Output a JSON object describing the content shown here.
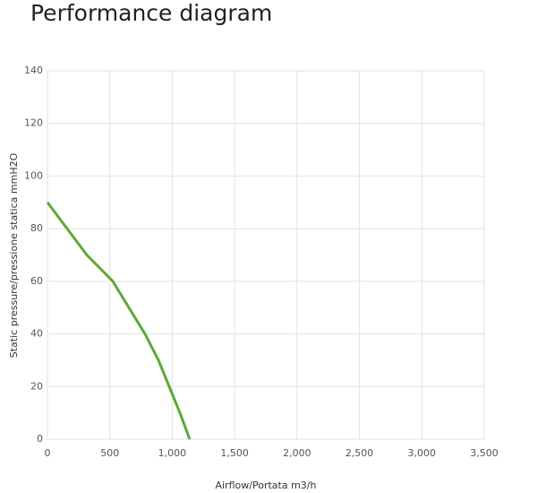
{
  "chart_data": {
    "type": "line",
    "title": "Performance diagram",
    "x_label": "Airflow/Portata m3/h",
    "y_label": "Static pressure/pressione statica mmH2O",
    "x": [
      0,
      158,
      316,
      524,
      782,
      890,
      1062,
      1140
    ],
    "series": [
      {
        "color": "#5aaa32",
        "values": [
          90,
          80,
          70,
          60,
          40,
          30,
          10,
          0
        ]
      }
    ],
    "xlim": [
      0,
      3500
    ],
    "xticks": [
      0,
      500,
      {
        "value": 1000,
        "label": "1,000"
      },
      {
        "value": 1500,
        "label": "1,500"
      },
      {
        "value": 2000,
        "label": "2,000"
      },
      {
        "value": 2500,
        "label": "2,500"
      },
      {
        "value": 3000,
        "label": "3,000"
      },
      {
        "value": 3500,
        "label": "3,500"
      }
    ],
    "ylim": [
      0,
      140
    ],
    "yticks": [
      0,
      20,
      40,
      60,
      80,
      100,
      120,
      140
    ],
    "grid": true
  }
}
